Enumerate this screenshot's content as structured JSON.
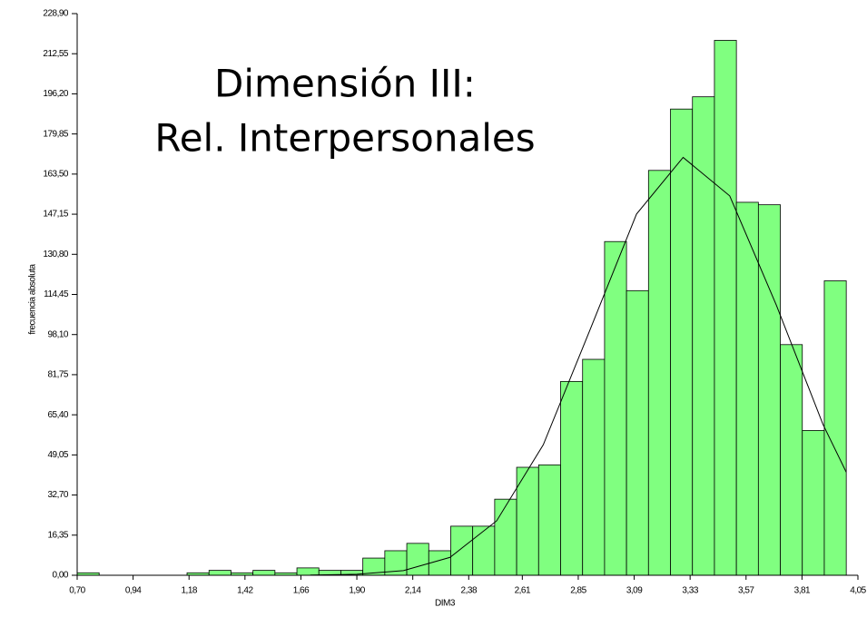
{
  "chart_data": {
    "type": "histogram",
    "annotations": [
      "Dimensión III:",
      "Rel. Interpersonales"
    ],
    "xlabel": "DIM3",
    "ylabel": "frecuencia absoluta",
    "color": "#80ff80",
    "bins": [
      0.7,
      0.7943,
      0.8886,
      0.9829,
      1.0771,
      1.1714,
      1.2657,
      1.36,
      1.4543,
      1.5486,
      1.6429,
      1.7371,
      1.8314,
      1.9257,
      2.02,
      2.1143,
      2.2086,
      2.3029,
      2.3971,
      2.4914,
      2.5857,
      2.68,
      2.7743,
      2.8686,
      2.9629,
      3.0571,
      3.1514,
      3.2457,
      3.34,
      3.4343,
      3.5286,
      3.6229,
      3.7171,
      3.8114,
      3.9057,
      4.0
    ],
    "values": [
      1,
      0,
      0,
      0,
      0,
      1,
      2,
      1,
      2,
      1,
      3,
      2,
      2,
      7,
      10,
      13,
      10,
      20,
      20,
      31,
      44,
      45,
      79,
      88,
      136,
      116,
      165,
      190,
      195,
      218,
      152,
      151,
      94,
      59,
      120
    ],
    "curve": {
      "color": "#000000",
      "x": [
        1.7,
        1.9,
        2.1,
        2.3,
        2.5,
        2.7,
        2.9,
        3.1,
        3.3,
        3.5,
        3.7,
        3.9,
        4.0
      ],
      "values": [
        0.1,
        0.4,
        1.9,
        7.3,
        22.2,
        53.2,
        99.9,
        147.2,
        170.3,
        154.6,
        110.1,
        61.5,
        42.0
      ]
    },
    "xlim": [
      0.7,
      4.05
    ],
    "xticks": [
      {
        "value": 0.7,
        "label": "0,70"
      },
      {
        "value": 0.94,
        "label": "0,94"
      },
      {
        "value": 1.18,
        "label": "1,18"
      },
      {
        "value": 1.42,
        "label": "1,42"
      },
      {
        "value": 1.66,
        "label": "1,66"
      },
      {
        "value": 1.9,
        "label": "1,90"
      },
      {
        "value": 2.14,
        "label": "2,14"
      },
      {
        "value": 2.38,
        "label": "2,38"
      },
      {
        "value": 2.61,
        "label": "2,61"
      },
      {
        "value": 2.85,
        "label": "2,85"
      },
      {
        "value": 3.09,
        "label": "3,09"
      },
      {
        "value": 3.33,
        "label": "3,33"
      },
      {
        "value": 3.57,
        "label": "3,57"
      },
      {
        "value": 3.81,
        "label": "3,81"
      },
      {
        "value": 4.05,
        "label": "4,05"
      }
    ],
    "ylim": [
      0,
      228.9
    ],
    "yticks": [
      {
        "value": 0,
        "label": "0,00"
      },
      {
        "value": 16.35,
        "label": "16,35"
      },
      {
        "value": 32.7,
        "label": "32,70"
      },
      {
        "value": 49.05,
        "label": "49,05"
      },
      {
        "value": 65.4,
        "label": "65,40"
      },
      {
        "value": 81.75,
        "label": "81,75"
      },
      {
        "value": 98.1,
        "label": "98,10"
      },
      {
        "value": 114.45,
        "label": "114,45"
      },
      {
        "value": 130.8,
        "label": "130,80"
      },
      {
        "value": 147.15,
        "label": "147,15"
      },
      {
        "value": 163.5,
        "label": "163,50"
      },
      {
        "value": 179.85,
        "label": "179,85"
      },
      {
        "value": 196.2,
        "label": "196,20"
      },
      {
        "value": 212.55,
        "label": "212,55"
      },
      {
        "value": 228.9,
        "label": "228,90"
      }
    ]
  }
}
